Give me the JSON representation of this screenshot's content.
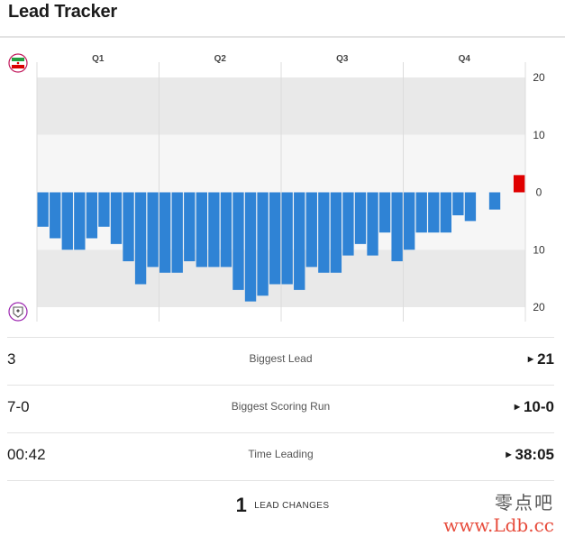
{
  "header": {
    "title": "Lead Tracker"
  },
  "teams": {
    "top_icon": "iran-flag-icon",
    "bottom_icon": "team-crest-icon"
  },
  "chart_data": {
    "type": "bar",
    "quarters": [
      "Q1",
      "Q2",
      "Q3",
      "Q4"
    ],
    "y_ticks": [
      "20",
      "10",
      "0",
      "10",
      "20"
    ],
    "ylim": [
      -20,
      20
    ],
    "colors": {
      "positive": "#e00000",
      "negative": "#2f83d5"
    },
    "values": [
      -6,
      -8,
      -10,
      -10,
      -8,
      -6,
      -9,
      -12,
      -16,
      -13,
      -14,
      -14,
      -12,
      -13,
      -13,
      -13,
      -17,
      -19,
      -18,
      -16,
      -16,
      -17,
      -13,
      -14,
      -14,
      -11,
      -9,
      -11,
      -7,
      -12,
      -10,
      -7,
      -7,
      -7,
      -4,
      -5,
      0,
      -3,
      0,
      3
    ]
  },
  "stats": [
    {
      "label": "Biggest Lead",
      "left": "3",
      "right": "21"
    },
    {
      "label": "Biggest Scoring Run",
      "left": "7-0",
      "right": "10-0"
    },
    {
      "label": "Time Leading",
      "left": "00:42",
      "right": "38:05"
    }
  ],
  "lead_changes": {
    "count": "1",
    "label": "LEAD CHANGES"
  },
  "watermark": {
    "line1": "零点吧",
    "line2": "www.Ldb.cc"
  }
}
